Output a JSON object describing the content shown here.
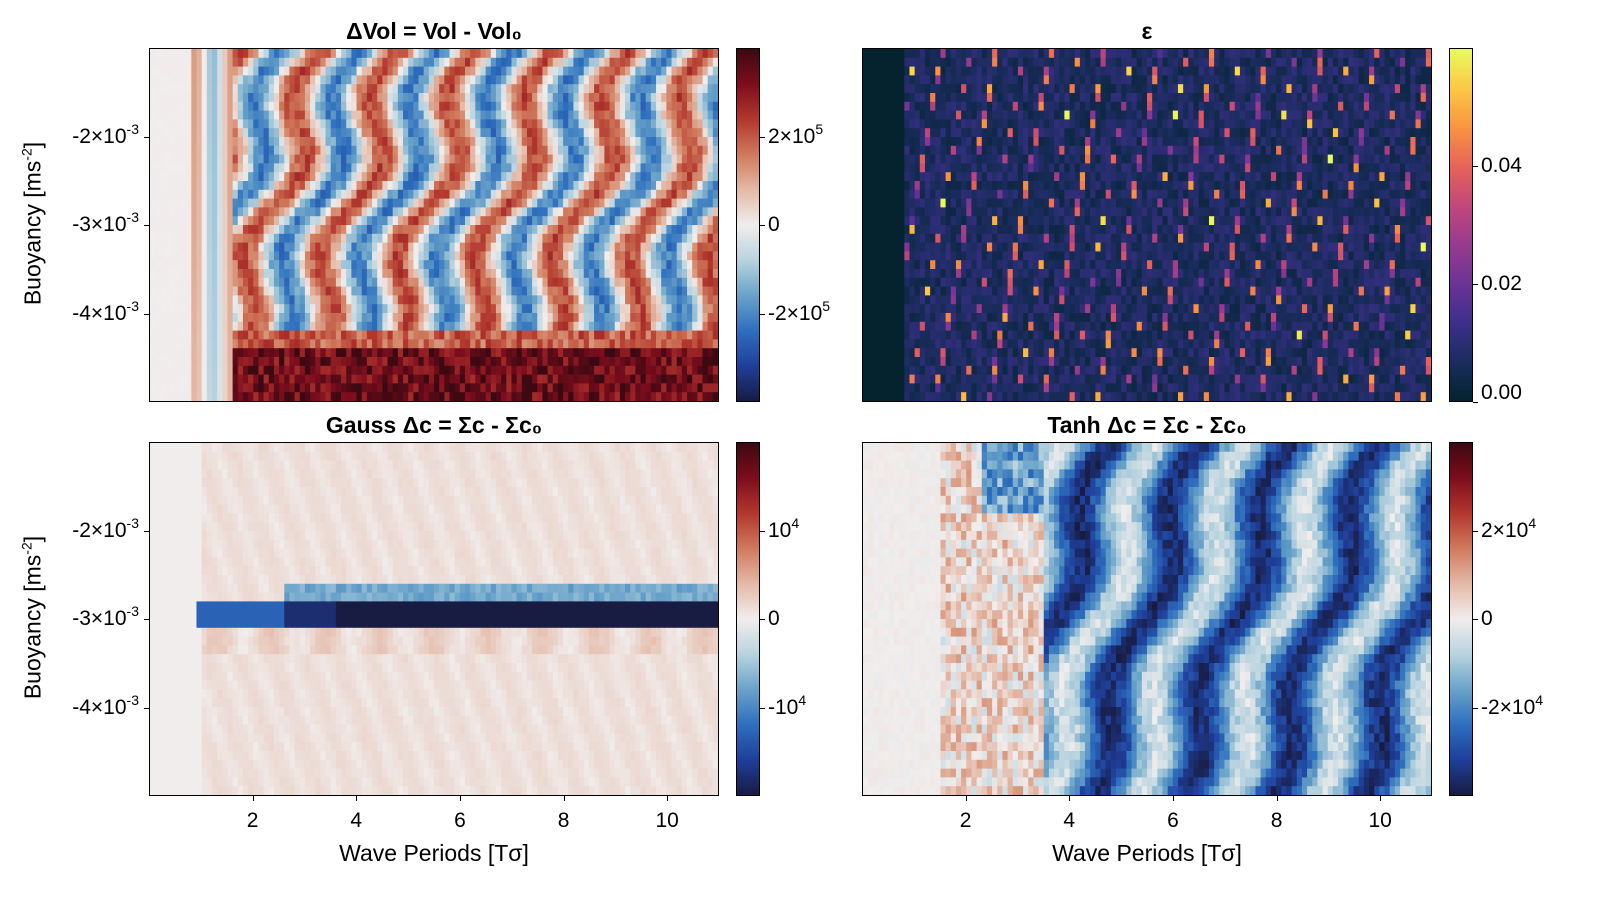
{
  "chart_data": [
    {
      "type": "heatmap",
      "id": "dvol",
      "title": "ΔVol = Vol - Vol₀",
      "xlabel": "",
      "ylabel": "Buoyancy [ms⁻²]",
      "xlim": [
        0,
        11
      ],
      "ylim": [
        -0.005,
        -0.001
      ],
      "x_ticks": [],
      "y_ticks": [
        {
          "value": -0.002,
          "label": "-2×10⁻³"
        },
        {
          "value": -0.003,
          "label": "-3×10⁻³"
        },
        {
          "value": -0.004,
          "label": "-4×10⁻³"
        }
      ],
      "colormap": "balance",
      "clim": [
        -400000.0,
        400000.0
      ],
      "colorbar_ticks": [
        {
          "value": 200000,
          "label": "2×10⁵"
        },
        {
          "value": 0,
          "label": "0"
        },
        {
          "value": -200000,
          "label": "-2×10⁵"
        }
      ]
    },
    {
      "type": "heatmap",
      "id": "eps",
      "title": "ε",
      "xlabel": "",
      "ylabel": "",
      "xlim": [
        0,
        11
      ],
      "ylim": [
        -0.005,
        -0.001
      ],
      "x_ticks": [],
      "y_ticks": [],
      "colormap": "thermal",
      "clim": [
        0,
        0.06
      ],
      "colorbar_ticks": [
        {
          "value": 0.04,
          "label": "0.04"
        },
        {
          "value": 0.02,
          "label": "0.02"
        },
        {
          "value": 0.0,
          "label": "0.00"
        }
      ]
    },
    {
      "type": "heatmap",
      "id": "gauss",
      "title": "Gauss Δc = Σc - Σc₀",
      "xlabel": "Wave Periods [Tσ]",
      "ylabel": "Buoyancy [ms⁻²]",
      "xlim": [
        0,
        11
      ],
      "ylim": [
        -0.005,
        -0.001
      ],
      "x_ticks": [
        {
          "value": 2,
          "label": "2"
        },
        {
          "value": 4,
          "label": "4"
        },
        {
          "value": 6,
          "label": "6"
        },
        {
          "value": 8,
          "label": "8"
        },
        {
          "value": 10,
          "label": "10"
        }
      ],
      "y_ticks": [
        {
          "value": -0.002,
          "label": "-2×10⁻³"
        },
        {
          "value": -0.003,
          "label": "-3×10⁻³"
        },
        {
          "value": -0.004,
          "label": "-4×10⁻³"
        }
      ],
      "colormap": "balance",
      "clim": [
        -20000,
        20000
      ],
      "colorbar_ticks": [
        {
          "value": 10000,
          "label": "10⁴"
        },
        {
          "value": 0,
          "label": "0"
        },
        {
          "value": -10000,
          "label": "-10⁴"
        }
      ]
    },
    {
      "type": "heatmap",
      "id": "tanh",
      "title": "Tanh Δc = Σc - Σc₀",
      "xlabel": "Wave Periods [Tσ]",
      "ylabel": "",
      "xlim": [
        0,
        11
      ],
      "ylim": [
        -0.005,
        -0.001
      ],
      "x_ticks": [
        {
          "value": 2,
          "label": "2"
        },
        {
          "value": 4,
          "label": "4"
        },
        {
          "value": 6,
          "label": "6"
        },
        {
          "value": 8,
          "label": "8"
        },
        {
          "value": 10,
          "label": "10"
        }
      ],
      "y_ticks": [],
      "colormap": "balance",
      "clim": [
        -40000,
        40000
      ],
      "colorbar_ticks": [
        {
          "value": 20000,
          "label": "2×10⁴"
        },
        {
          "value": 0,
          "label": "0"
        },
        {
          "value": -20000,
          "label": "-2×10⁴"
        }
      ]
    }
  ],
  "colormaps": {
    "balance": [
      "#181c43",
      "#1f3f9a",
      "#2e6fbe",
      "#6aa3c9",
      "#b8d3df",
      "#f1eded",
      "#e4b9a7",
      "#d07a5c",
      "#b2372e",
      "#7d0d1d",
      "#3c0912"
    ],
    "thermal": [
      "#04232f",
      "#1b2c5e",
      "#3d2f8b",
      "#6b3395",
      "#973b8f",
      "#c2477a",
      "#e7635a",
      "#f99441",
      "#fbc945",
      "#e9fb5b"
    ]
  }
}
